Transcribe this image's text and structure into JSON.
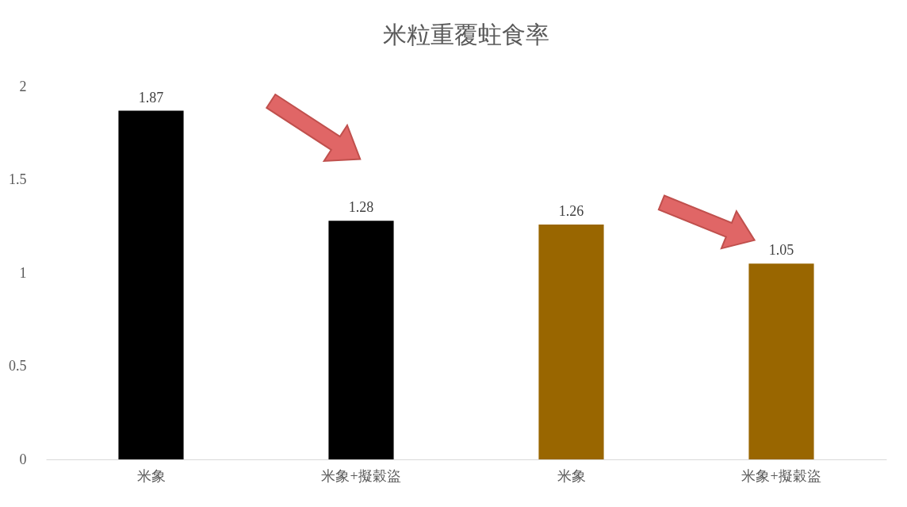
{
  "chart_data": {
    "type": "bar",
    "title": "米粒重覆蛀食率",
    "categories": [
      "米象",
      "米象+擬穀盜",
      "米象",
      "米象+擬穀盜"
    ],
    "values": [
      1.87,
      1.28,
      1.26,
      1.05
    ],
    "colors": [
      "#000000",
      "#000000",
      "#996600",
      "#996600"
    ],
    "ylim": [
      0,
      2
    ],
    "yticks": [
      0,
      0.5,
      1,
      1.5,
      2
    ],
    "grid": false,
    "data_labels": true
  }
}
